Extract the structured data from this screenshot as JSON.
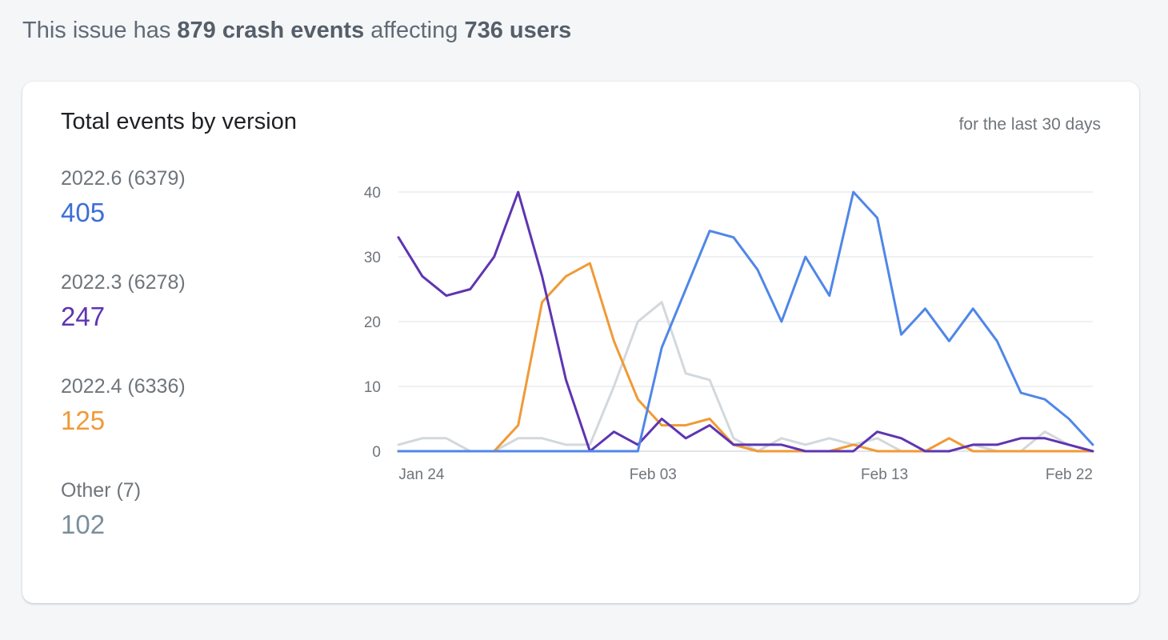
{
  "summary": {
    "prefix": "This issue has",
    "events": "879 crash events",
    "middle": "affecting",
    "users": "736 users"
  },
  "card": {
    "title": "Total events by version",
    "subtitle": "for the last 30 days"
  },
  "legend": [
    {
      "name": "2022.6 (6379)",
      "count": "405",
      "color": "#3d6fd6"
    },
    {
      "name": "2022.3 (6278)",
      "count": "247",
      "color": "#5e35b1"
    },
    {
      "name": "2022.4 (6336)",
      "count": "125",
      "color": "#f09a37"
    },
    {
      "name": "Other (7)",
      "count": "102",
      "color": "#78909c"
    }
  ],
  "chart_data": {
    "type": "line",
    "x_start": "Jan 23",
    "x_end": "Feb 22",
    "x_ticks": [
      {
        "label": "Jan 24",
        "date": "Jan 24"
      },
      {
        "label": "Feb 03",
        "date": "Feb 03"
      },
      {
        "label": "Feb 13",
        "date": "Feb 13"
      },
      {
        "label": "Feb 22",
        "date": "Feb 22"
      }
    ],
    "y_ticks": [
      0,
      10,
      20,
      30,
      40
    ],
    "ylim": [
      0,
      40
    ],
    "grid": true,
    "series": [
      {
        "name": "2022.6 (6379)",
        "color": "#5087e8",
        "values": [
          0,
          0,
          0,
          0,
          0,
          0,
          0,
          0,
          0,
          0,
          0,
          16,
          25,
          34,
          33,
          28,
          20,
          30,
          24,
          40,
          36,
          18,
          22,
          17,
          22,
          17,
          9,
          8,
          5,
          1
        ]
      },
      {
        "name": "2022.3 (6278)",
        "color": "#5e35b1",
        "values": [
          33,
          27,
          24,
          25,
          30,
          40,
          27,
          11,
          0,
          3,
          1,
          5,
          2,
          4,
          1,
          1,
          1,
          0,
          0,
          0,
          3,
          2,
          0,
          0,
          1,
          1,
          2,
          2,
          1,
          0
        ]
      },
      {
        "name": "2022.4 (6336)",
        "color": "#f09a37",
        "values": [
          0,
          0,
          0,
          0,
          0,
          4,
          23,
          27,
          29,
          17,
          8,
          4,
          4,
          5,
          1,
          0,
          0,
          0,
          0,
          1,
          0,
          0,
          0,
          2,
          0,
          0,
          0,
          0,
          0,
          0
        ]
      },
      {
        "name": "Other (7)",
        "color": "#d3d8dc",
        "values": [
          1,
          2,
          2,
          0,
          0,
          2,
          2,
          1,
          1,
          10,
          20,
          23,
          12,
          11,
          2,
          0,
          2,
          1,
          2,
          1,
          2,
          0,
          0,
          0,
          1,
          0,
          0,
          3,
          1,
          0
        ]
      }
    ]
  }
}
